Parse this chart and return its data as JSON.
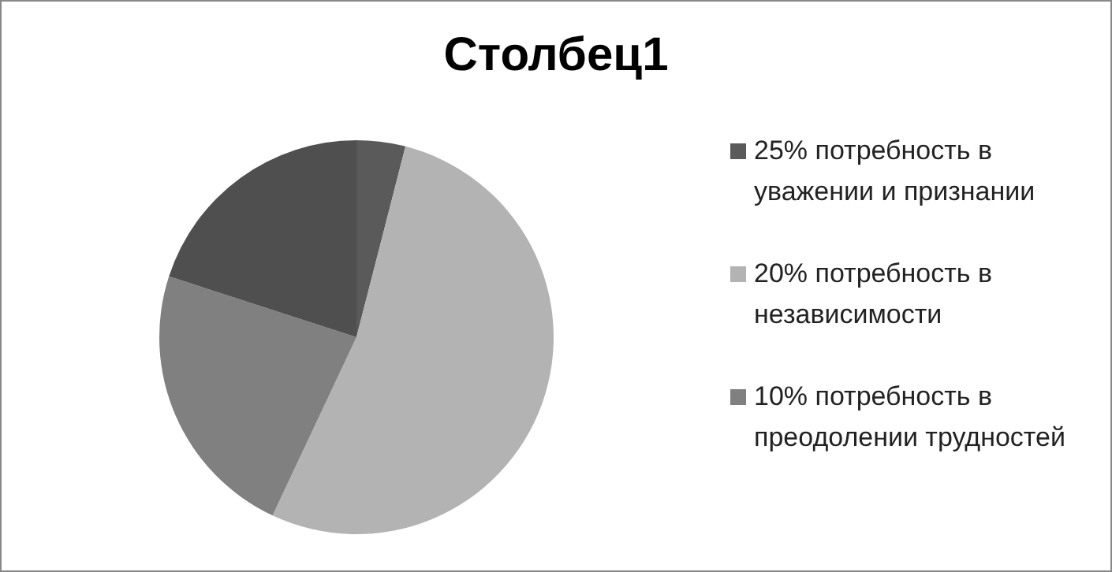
{
  "chart_data": {
    "type": "pie",
    "title": "Столбец1",
    "categories": [
      "25% потребность в уважении и признании",
      "20% потребность в независимости",
      "10% потребность в преодолении трудностей",
      null
    ],
    "values": [
      4,
      53,
      23,
      20
    ],
    "colors": [
      "#5a5a5a",
      "#b3b3b3",
      "#808080",
      "#4f4f4f"
    ],
    "legend": "right"
  }
}
